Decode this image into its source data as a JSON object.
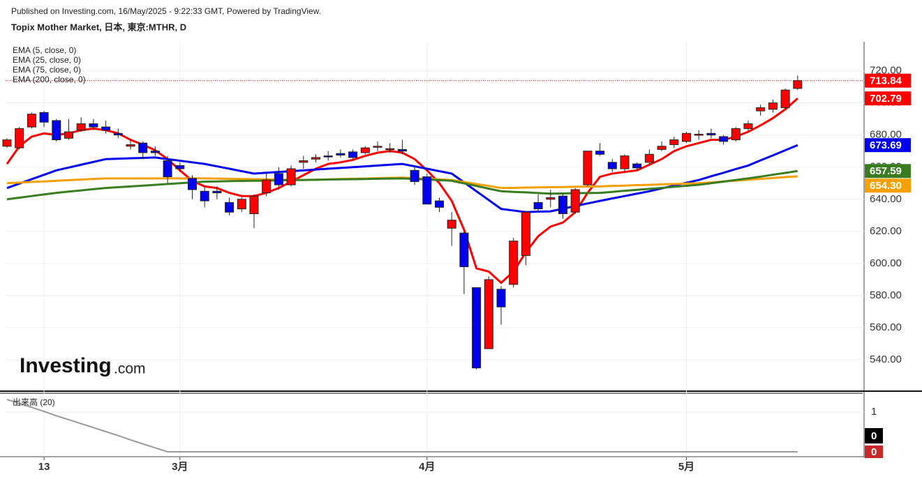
{
  "header": {
    "published": "Published on Investing.com, 16/May/2025 - 9:22:33 GMT, Powered by TradingView."
  },
  "logo": {
    "name": "Investing",
    "suffix": ".com"
  },
  "chart_data": [
    {
      "type": "candlestick",
      "title": "Topix Mother Market, 日本, 東京:MTHR, D",
      "categories": [
        null,
        null,
        null,
        "13",
        null,
        null,
        null,
        null,
        null,
        null,
        null,
        null,
        null,
        null,
        "3月",
        null,
        null,
        null,
        null,
        null,
        null,
        null,
        null,
        null,
        null,
        null,
        null,
        null,
        null,
        null,
        null,
        null,
        null,
        null,
        "4月",
        null,
        null,
        null,
        null,
        null,
        null,
        null,
        null,
        null,
        null,
        null,
        null,
        null,
        null,
        null,
        null,
        null,
        null,
        null,
        null,
        "5月",
        null,
        null,
        null,
        null,
        null,
        null,
        null,
        null,
        null
      ],
      "open": [
        673,
        672,
        685,
        694,
        689,
        678,
        683,
        687,
        685,
        681,
        673,
        675,
        670,
        664,
        661,
        653,
        645,
        645,
        638,
        634,
        631,
        644,
        656,
        649,
        663,
        665,
        667,
        668.5,
        669.5,
        669,
        672.5,
        671,
        671,
        658,
        654,
        639,
        622,
        619,
        585,
        547,
        584,
        587,
        605,
        638,
        640,
        642,
        632,
        649,
        670,
        663,
        659,
        662,
        663,
        671,
        674,
        676,
        680,
        681,
        679,
        677,
        684,
        695,
        696,
        697,
        709
      ],
      "high": [
        678,
        685,
        694,
        695,
        690,
        690,
        691,
        690,
        689,
        684,
        677,
        676,
        673,
        667,
        663,
        655,
        648,
        648,
        641,
        641,
        643,
        656,
        660,
        661,
        667,
        668,
        670,
        671,
        671,
        673,
        676,
        675,
        677,
        660,
        656,
        641,
        632,
        620,
        585,
        592,
        586,
        616,
        632,
        643,
        646,
        643,
        647,
        670,
        675,
        665,
        668,
        663,
        671,
        676,
        679,
        682,
        683,
        684,
        680,
        685,
        689,
        699,
        702,
        709,
        717
      ],
      "low": [
        672,
        671,
        684,
        685,
        676,
        677,
        682,
        683,
        681,
        678,
        671,
        665,
        667,
        650,
        657,
        640,
        635,
        640,
        630,
        632,
        622,
        642,
        646,
        648,
        659,
        663,
        664,
        666,
        664,
        668,
        670,
        669,
        668,
        649,
        637,
        632,
        611,
        581,
        534,
        547,
        562,
        585,
        599,
        632,
        635,
        628,
        631,
        648,
        667,
        657,
        657,
        658,
        662,
        670,
        672,
        675,
        677,
        678,
        674,
        676,
        682,
        692,
        694,
        696,
        708
      ],
      "close": [
        677,
        684,
        693,
        688,
        677,
        682,
        687,
        685,
        683,
        680,
        674,
        669,
        669,
        654,
        659,
        646,
        639,
        644,
        632,
        640,
        642,
        652,
        649,
        659,
        664,
        666,
        666.5,
        667.5,
        666,
        672,
        673,
        671.5,
        670,
        651,
        637,
        635,
        627,
        598,
        535,
        590,
        573,
        614,
        632,
        634,
        641,
        631,
        646,
        670,
        668,
        659,
        667,
        659.5,
        668,
        673,
        677,
        681,
        680.5,
        680,
        676,
        684,
        687,
        697,
        700,
        708,
        713.84
      ],
      "up_color": "#ff0000",
      "down_color": "#0000ee",
      "series": [
        {
          "name": "EMA (5, close, 0)",
          "color": "#ff0000",
          "values": [
            662,
            673,
            679,
            681,
            680,
            681,
            683,
            684,
            683,
            681,
            677,
            674,
            670.5,
            665,
            658,
            651.5,
            648,
            647,
            644,
            642,
            642,
            644,
            647,
            651,
            655,
            659,
            662,
            663,
            664.5,
            667,
            669,
            670,
            669,
            665,
            658,
            650,
            639,
            621,
            597,
            595,
            588,
            595,
            607,
            617,
            623,
            625.5,
            632,
            644,
            654,
            656,
            657,
            658,
            661.5,
            665,
            670,
            673,
            675,
            677,
            677,
            679,
            682,
            686,
            690.5,
            696,
            702.79
          ]
        },
        {
          "name": "EMA (25, close, 0)",
          "color": "#0000ee",
          "values": [
            647,
            649.75,
            652.5,
            655.25,
            658,
            659.75,
            661.5,
            663.25,
            665,
            665.25,
            665.5,
            665.75,
            666,
            665,
            664,
            663,
            662,
            660.5,
            659,
            657.5,
            656,
            656.5,
            657,
            657.5,
            658,
            658.5,
            659,
            659.5,
            660,
            660.5,
            661,
            661.5,
            662,
            660.5,
            659,
            657.5,
            656,
            650.5,
            645,
            639.5,
            634,
            633,
            632,
            632.3,
            632.5,
            634.1,
            635.8,
            637.4,
            639,
            640.5,
            642,
            643.5,
            645,
            646.8,
            648.5,
            650.3,
            652,
            654.3,
            656.5,
            658.8,
            661,
            664.2,
            667.3,
            670.5,
            673.69
          ]
        },
        {
          "name": "EMA (75, close, 0)",
          "color": "#f5a000",
          "last_label": "654.30",
          "values": [
            650,
            650.4,
            650.8,
            651.1,
            651.5,
            651.9,
            652.3,
            652.6,
            653,
            653,
            653,
            653,
            653,
            653,
            653,
            653,
            653,
            652.9,
            652.8,
            652.6,
            652.5,
            652.4,
            652.3,
            652.1,
            652,
            652.2,
            652.4,
            652.6,
            652.8,
            652.9,
            653.1,
            653.3,
            653.5,
            653.1,
            652.8,
            652.4,
            652,
            650.8,
            649.5,
            648.3,
            647,
            647.1,
            647.3,
            647.4,
            647.5,
            647.6,
            647.8,
            647.9,
            648,
            648.3,
            648.5,
            648.8,
            649,
            649.3,
            649.5,
            649.8,
            650,
            650.5,
            651.1,
            651.6,
            652.2,
            652.7,
            653.2,
            653.8,
            654.3
          ]
        },
        {
          "name": "EMA (200, close, 0)",
          "color": "#3a7d20",
          "values": [
            640,
            641,
            642,
            643,
            644,
            644.8,
            645.5,
            646.3,
            647,
            647.5,
            648,
            648.5,
            649,
            649.5,
            650,
            650.5,
            651,
            651.1,
            651.3,
            651.4,
            651.5,
            651.6,
            651.8,
            651.9,
            652,
            652.1,
            652.3,
            652.4,
            652.5,
            652.6,
            652.8,
            652.9,
            653,
            652.6,
            652.3,
            651.9,
            651.5,
            649.9,
            648.3,
            646.6,
            645,
            644.6,
            644.3,
            643.9,
            643.5,
            643.6,
            643.8,
            643.9,
            644,
            644.6,
            645.3,
            645.9,
            646.5,
            647.1,
            647.8,
            648.4,
            649,
            650,
            651,
            652,
            653,
            654.1,
            655.3,
            656.4,
            657.59
          ]
        }
      ],
      "ylim": [
        521,
        738
      ],
      "yticks": [
        {
          "value": 540,
          "label": "540.00"
        },
        {
          "value": 560,
          "label": "560.00"
        },
        {
          "value": 580,
          "label": "580.00"
        },
        {
          "value": 600,
          "label": "600.00"
        },
        {
          "value": 620,
          "label": "620.00"
        },
        {
          "value": 640,
          "label": "640.00"
        },
        {
          "value": 660,
          "label": "660.00"
        },
        {
          "value": 680,
          "label": "680.00"
        },
        {
          "value": 700,
          "label": "700.00"
        },
        {
          "value": 720,
          "label": "720.00"
        }
      ],
      "grid": true
    },
    {
      "type": "line",
      "title": "出来高 (20)",
      "color": "#999999",
      "values": [
        1.32,
        1.22,
        1.12,
        1.02,
        0.91,
        0.81,
        0.71,
        0.61,
        0.51,
        0.41,
        0.3,
        0.2,
        0.1,
        0,
        0,
        0,
        0,
        0,
        0,
        0,
        0,
        0,
        0,
        0,
        0,
        0,
        0,
        0,
        0,
        0,
        0,
        0,
        0,
        0,
        0,
        0,
        0,
        0,
        0,
        0,
        0,
        0,
        0,
        0,
        0,
        0,
        0,
        0,
        0,
        0,
        0,
        0,
        0,
        0,
        0,
        0,
        0,
        0,
        0,
        0,
        0,
        0,
        0,
        0,
        0
      ],
      "last_volume": 0,
      "ylim": [
        0,
        1.46
      ],
      "yticks": [
        1
      ]
    }
  ]
}
